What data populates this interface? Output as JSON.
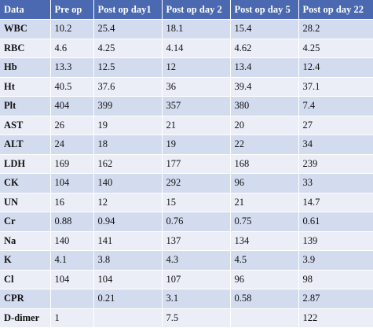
{
  "table": {
    "headers": [
      "Data",
      "Pre op",
      "Post op day1",
      "Post op day 2",
      "Post op day 5",
      "Post op day 22"
    ],
    "rows": [
      [
        "WBC",
        "10.2",
        "25.4",
        "18.1",
        "15.4",
        "28.2"
      ],
      [
        "RBC",
        "4.6",
        "4.25",
        "4.14",
        "4.62",
        "4.25"
      ],
      [
        "Hb",
        "13.3",
        "12.5",
        "12",
        "13.4",
        "12.4"
      ],
      [
        "Ht",
        "40.5",
        "37.6",
        "36",
        "39.4",
        "37.1"
      ],
      [
        "Plt",
        "404",
        "399",
        "357",
        "380",
        "7.4"
      ],
      [
        "AST",
        "26",
        "19",
        "21",
        "20",
        "27"
      ],
      [
        "ALT",
        "24",
        "18",
        "19",
        "22",
        "34"
      ],
      [
        "LDH",
        "169",
        "162",
        "177",
        "168",
        "239"
      ],
      [
        "CK",
        "104",
        "140",
        "292",
        "96",
        "33"
      ],
      [
        "UN",
        "16",
        "12",
        "15",
        "21",
        "14.7"
      ],
      [
        "Cr",
        "0.88",
        "0.94",
        "0.76",
        "0.75",
        "0.61"
      ],
      [
        "Na",
        "140",
        "141",
        "137",
        "134",
        "139"
      ],
      [
        "K",
        "4.1",
        "3.8",
        "4.3",
        "4.5",
        "3.9"
      ],
      [
        "Cl",
        "104",
        "104",
        "107",
        "96",
        "98"
      ],
      [
        "CPR",
        "",
        "0.21",
        "3.1",
        "0.58",
        "2.87"
      ],
      [
        "D-dimer",
        "1",
        "",
        "7.5",
        "",
        "122"
      ]
    ]
  },
  "colors": {
    "header_bg": "#4a69b0",
    "row_dark": "#d3dbee",
    "row_light": "#ebeef7"
  }
}
